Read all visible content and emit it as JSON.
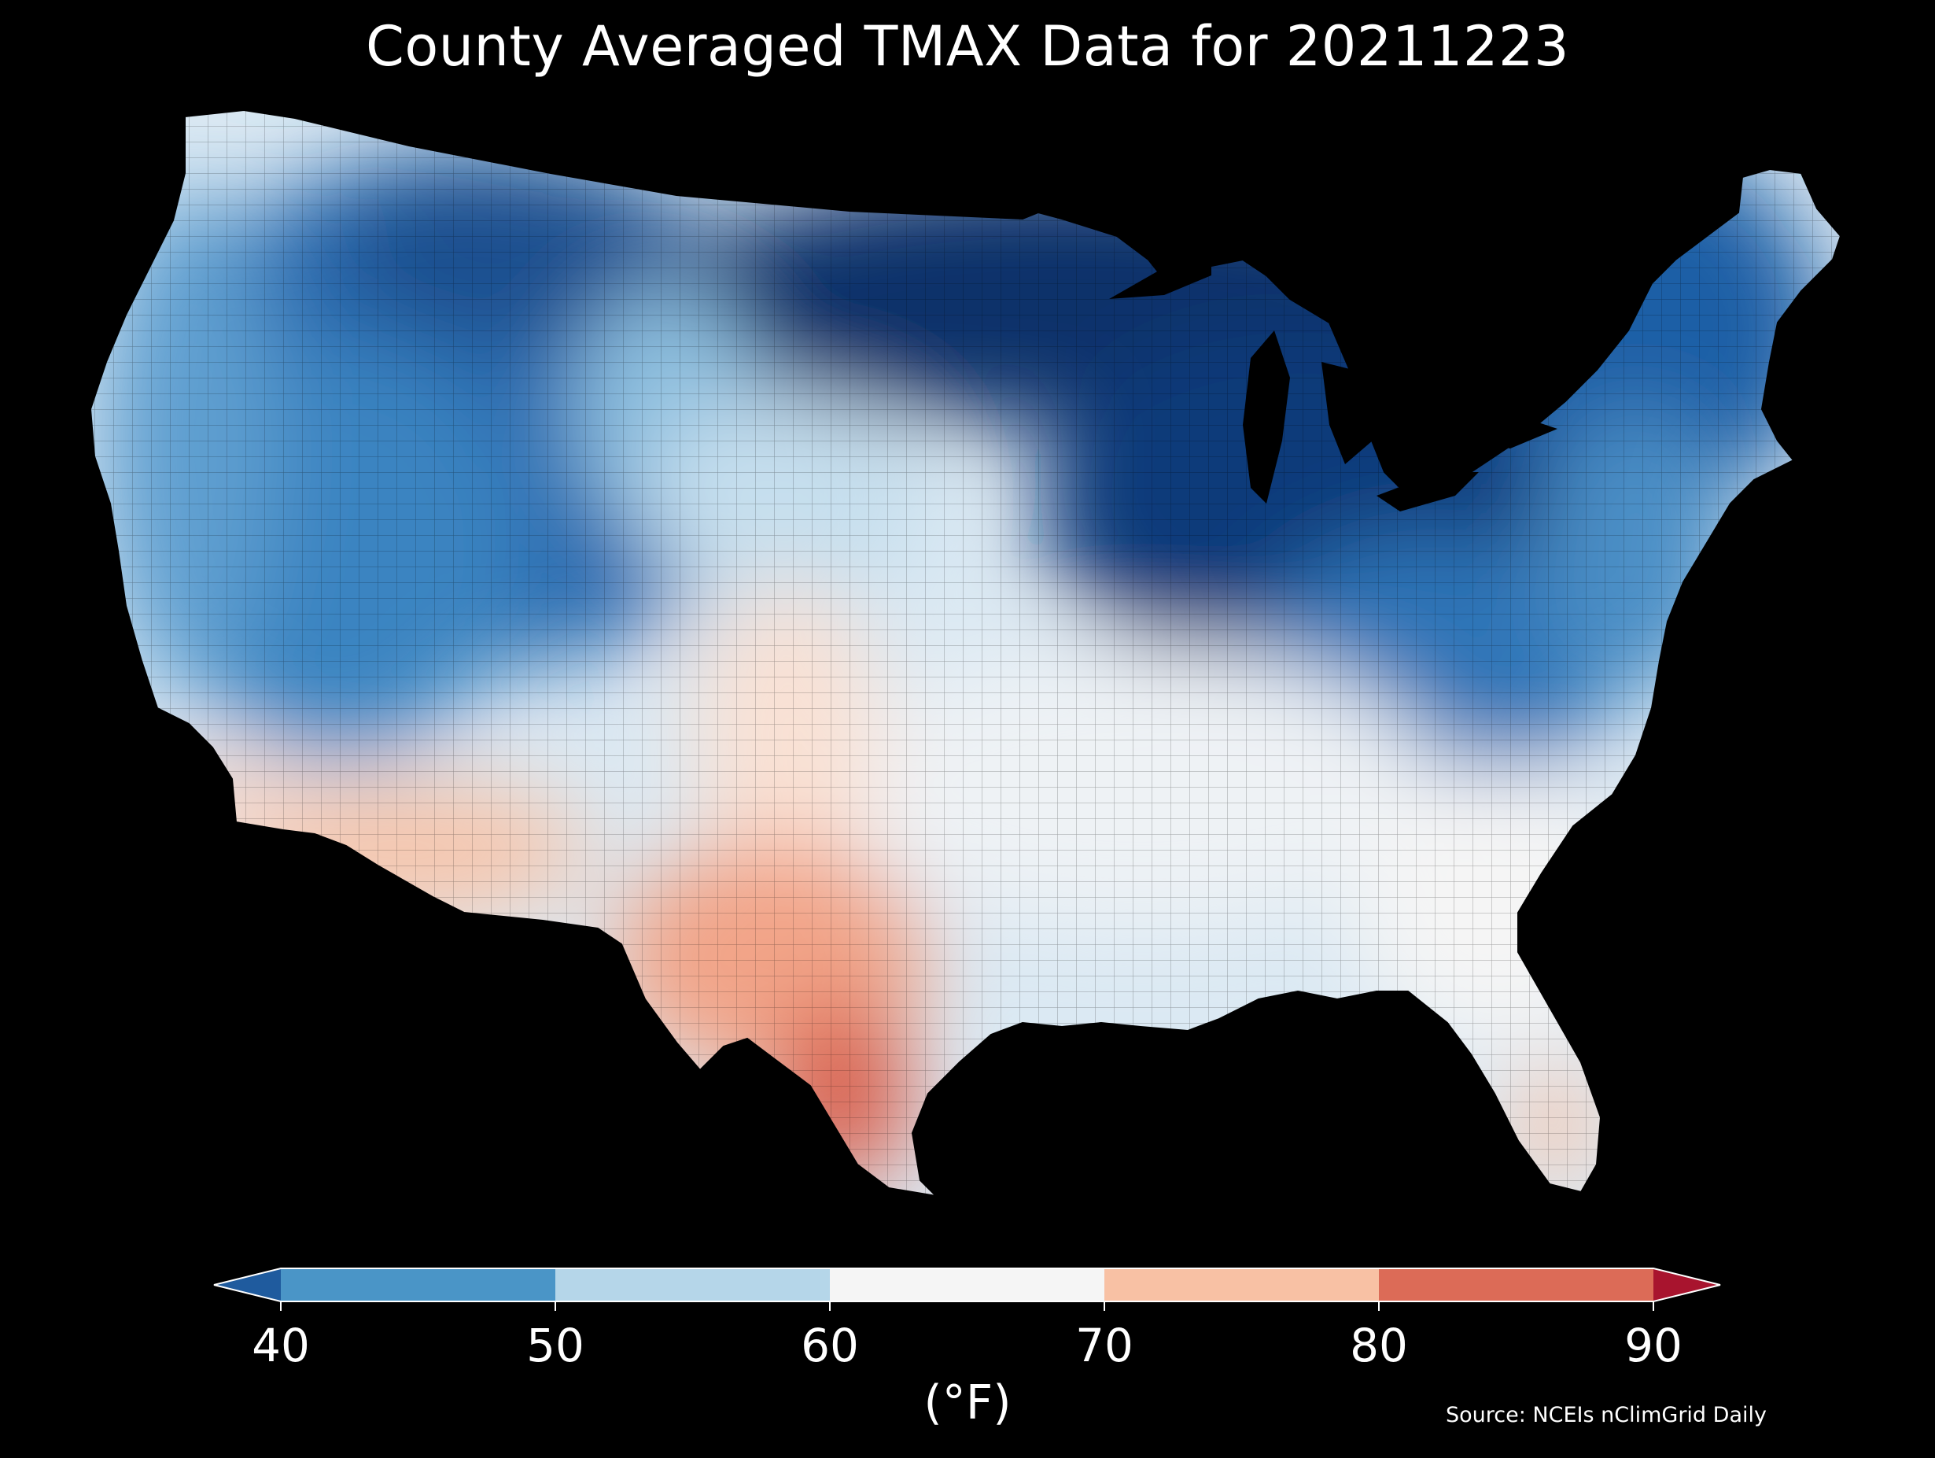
{
  "title": "County Averaged TMAX Data for 20211223",
  "colorbar": {
    "unit_label": "(°F)",
    "ticks": [
      "40",
      "50",
      "60",
      "70",
      "80",
      "90"
    ],
    "bins": [
      {
        "from": 40,
        "to": 50,
        "color": "#4a95c7"
      },
      {
        "from": 50,
        "to": 60,
        "color": "#b5d6e9"
      },
      {
        "from": 60,
        "to": 70,
        "color": "#f5f5f5"
      },
      {
        "from": 70,
        "to": 80,
        "color": "#f8c1a4"
      },
      {
        "from": 80,
        "to": 90,
        "color": "#dc6b57"
      }
    ],
    "under_color": "#1f5b9e",
    "over_color": "#a8142e",
    "extend": "both"
  },
  "source": "Source: NCEIs nClimGrid Daily",
  "map_colors": {
    "background": "#000000",
    "coldest": "#08306b",
    "cold": "#2166ac",
    "cool": "#6aa9d4",
    "neutral": "#f2f2f2",
    "warm": "#f4a582",
    "hottest": "#d6604d"
  }
}
